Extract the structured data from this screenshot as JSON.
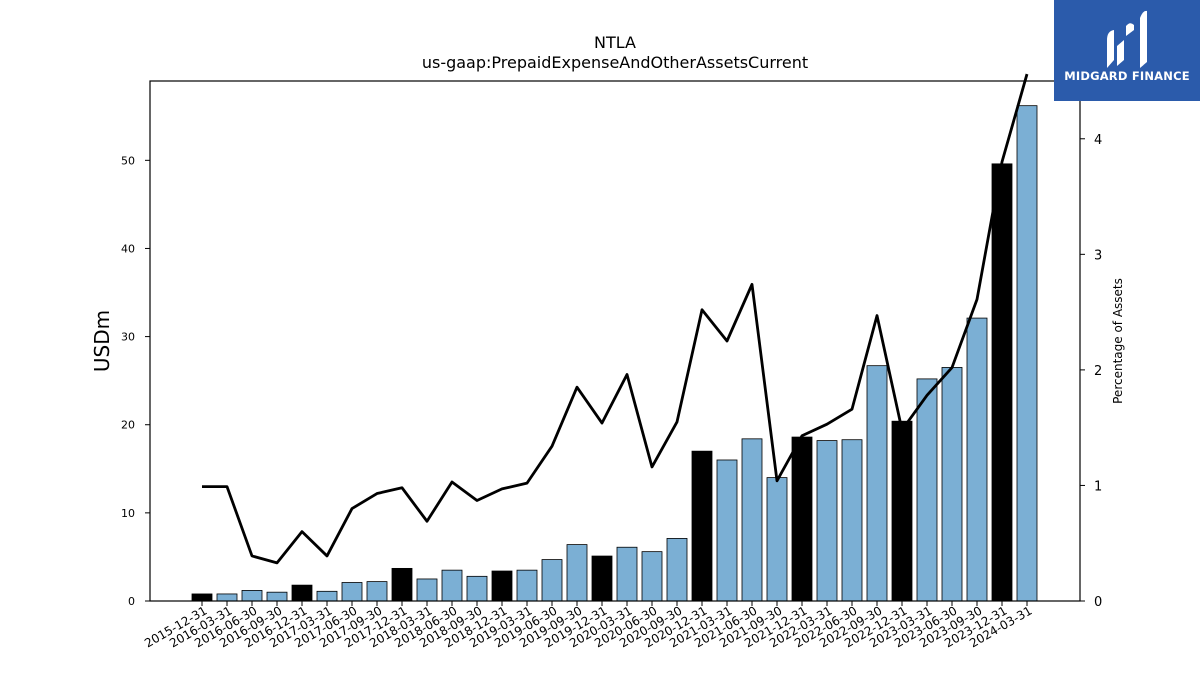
{
  "chart_data": {
    "type": "bar",
    "title": "NTLA",
    "subtitle": "us-gaap:PrepaidExpenseAndOtherAssetsCurrent",
    "ylabel": "USDm",
    "y2label": "Percentage of Assets",
    "ylim": [
      0,
      59
    ],
    "y2lim": [
      0,
      4.5
    ],
    "yticks": [
      0,
      10,
      20,
      30,
      40,
      50
    ],
    "y2ticks": [
      0,
      1,
      2,
      3,
      4
    ],
    "grid": false,
    "categories": [
      "2015-12-31",
      "2016-03-31",
      "2016-06-30",
      "2016-09-30",
      "2016-12-31",
      "2017-03-31",
      "2017-06-30",
      "2017-09-30",
      "2017-12-31",
      "2018-03-31",
      "2018-06-30",
      "2018-09-30",
      "2018-12-31",
      "2019-03-31",
      "2019-06-30",
      "2019-09-30",
      "2019-12-31",
      "2020-03-31",
      "2020-06-30",
      "2020-09-30",
      "2020-12-31",
      "2021-03-31",
      "2021-06-30",
      "2021-09-30",
      "2021-12-31",
      "2022-03-31",
      "2022-06-30",
      "2022-09-30",
      "2022-12-31",
      "2023-03-31",
      "2023-06-30",
      "2023-09-30",
      "2023-12-31",
      "2024-03-31"
    ],
    "series": [
      {
        "kind": "bar",
        "values": [
          0.8,
          0.8,
          1.2,
          1.0,
          1.8,
          1.1,
          2.1,
          2.2,
          3.7,
          2.5,
          3.5,
          2.8,
          3.4,
          3.5,
          4.7,
          6.4,
          5.1,
          6.1,
          5.6,
          7.1,
          17.0,
          16.0,
          18.4,
          14.0,
          18.6,
          18.2,
          18.3,
          26.7,
          20.4,
          25.2,
          26.5,
          32.1,
          49.6,
          56.2
        ]
      },
      {
        "kind": "line",
        "axis": "right",
        "values": [
          0.99,
          0.99,
          0.39,
          0.33,
          0.6,
          0.39,
          0.8,
          0.93,
          0.98,
          0.69,
          1.03,
          0.87,
          0.97,
          1.02,
          1.34,
          1.85,
          1.54,
          1.96,
          1.16,
          1.55,
          2.52,
          2.25,
          2.74,
          1.04,
          1.43,
          1.53,
          1.66,
          2.47,
          1.48,
          1.78,
          2.02,
          2.61,
          3.8,
          4.56
        ]
      }
    ],
    "colors": {
      "bar_annual": "#000000",
      "bar_quarter": "#7bafd4",
      "line": "#000000",
      "edge": "#000000"
    }
  },
  "logo": {
    "text": "MIDGARD FINANCE",
    "background": "#2b5bab"
  }
}
